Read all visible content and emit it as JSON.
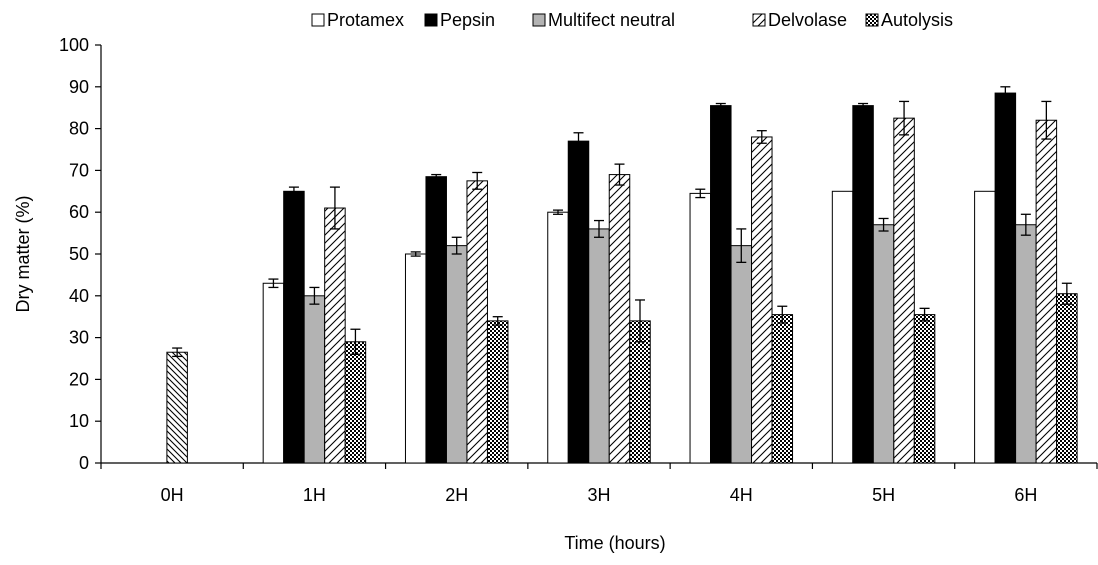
{
  "chart_data": {
    "type": "bar",
    "title": "",
    "xlabel": "Time (hours)",
    "ylabel": "Dry matter (%)",
    "ylim": [
      0,
      100
    ],
    "yticks": [
      0,
      10,
      20,
      30,
      40,
      50,
      60,
      70,
      80,
      90,
      100
    ],
    "categories": [
      "0H",
      "1H",
      "2H",
      "3H",
      "4H",
      "5H",
      "6H"
    ],
    "legend_position": "top",
    "grid": false,
    "series": [
      {
        "name": "Protamex",
        "fill": "white",
        "color": "#ffffff",
        "values": [
          null,
          43,
          50,
          60,
          64.5,
          65,
          65
        ],
        "errors": [
          null,
          1,
          0.5,
          0.5,
          1,
          0,
          0
        ]
      },
      {
        "name": "Pepsin",
        "fill": "black",
        "color": "#000000",
        "values": [
          null,
          65,
          68.5,
          77,
          85.5,
          85.5,
          88.5
        ],
        "errors": [
          null,
          1,
          0.5,
          2,
          0.5,
          0.5,
          1.5
        ]
      },
      {
        "name": "Multifect neutral",
        "fill": "gray",
        "color": "#b3b3b3",
        "values": [
          null,
          40,
          52,
          56,
          52,
          57,
          57
        ],
        "errors": [
          null,
          2,
          2,
          2,
          4,
          1.5,
          2.5
        ]
      },
      {
        "name": "Delvolase",
        "fill": "diagonal-hatch",
        "color": "#ffffff",
        "values": [
          null,
          61,
          67.5,
          69,
          78,
          82.5,
          82
        ],
        "errors": [
          null,
          5,
          2,
          2.5,
          1.5,
          4,
          4.5
        ]
      },
      {
        "name": "Autolysis",
        "fill": "checker",
        "color": "#000000",
        "values": [
          26.5,
          29,
          34,
          34,
          35.5,
          35.5,
          40.5
        ],
        "errors": [
          1,
          3,
          1,
          5,
          2,
          1.5,
          2.5
        ]
      }
    ]
  }
}
